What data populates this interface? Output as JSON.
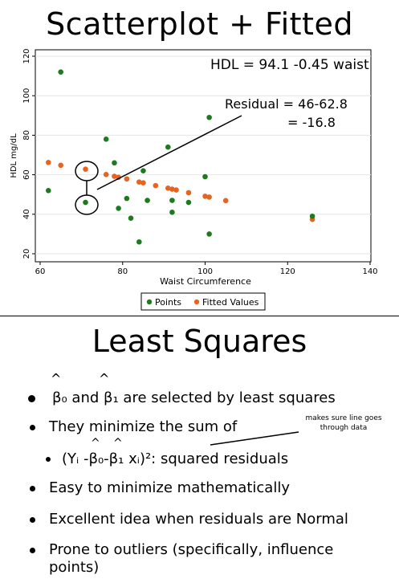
{
  "slide1": {
    "title": "Scatterplot + Fitted",
    "equation": "HDL = 94.1 -0.45 waist",
    "residual_line1": "Residual = 46-62.8",
    "residual_line2": "= -16.8"
  },
  "chart_data": {
    "type": "scatter",
    "xlabel": "Waist Circumference",
    "ylabel": "HDL mg/dL",
    "xlim": [
      60,
      140
    ],
    "ylim": [
      20,
      120
    ],
    "xticks": [
      60,
      80,
      100,
      120,
      140
    ],
    "yticks": [
      20,
      40,
      60,
      80,
      100,
      120
    ],
    "legend_position": "bottom",
    "series": [
      {
        "name": "Points",
        "color": "#1e7a1e",
        "x": [
          62,
          65,
          71,
          76,
          78,
          79,
          81,
          82,
          84,
          85,
          86,
          91,
          92,
          92,
          96,
          100,
          101,
          101,
          126
        ],
        "y": [
          52,
          112,
          46,
          78,
          66,
          43,
          48,
          38,
          26,
          62,
          47,
          74,
          41,
          47,
          46,
          59,
          89,
          30,
          39
        ]
      },
      {
        "name": "Fitted Values",
        "color": "#e8641e",
        "x": [
          62,
          65,
          71,
          76,
          78,
          79,
          81,
          84,
          85,
          88,
          91,
          92,
          93,
          96,
          100,
          101,
          105,
          126
        ],
        "y": [
          66.2,
          64.8,
          62.8,
          60.1,
          59.2,
          58.7,
          57.9,
          56.3,
          55.9,
          54.5,
          53.2,
          52.7,
          52.3,
          50.9,
          49.1,
          48.7,
          46.9,
          37.4
        ]
      }
    ]
  },
  "slide2": {
    "title": "Least Squares",
    "bullet1_text": "β₀ and β₁ are selected by least squares",
    "bullet2_text": "They minimize the sum of",
    "bullet2_sub_text": "(Yᵢ -β₀-β₁ xᵢ)²:   squared residuals",
    "bullet3_text": "Easy to minimize mathematically",
    "bullet4_text": "Excellent idea when residuals are Normal",
    "bullet5_line1": "Prone to outliers (specifically, influence",
    "bullet5_line2": "points)",
    "note_line1": "makes sure line goes",
    "note_line2": "through data"
  }
}
